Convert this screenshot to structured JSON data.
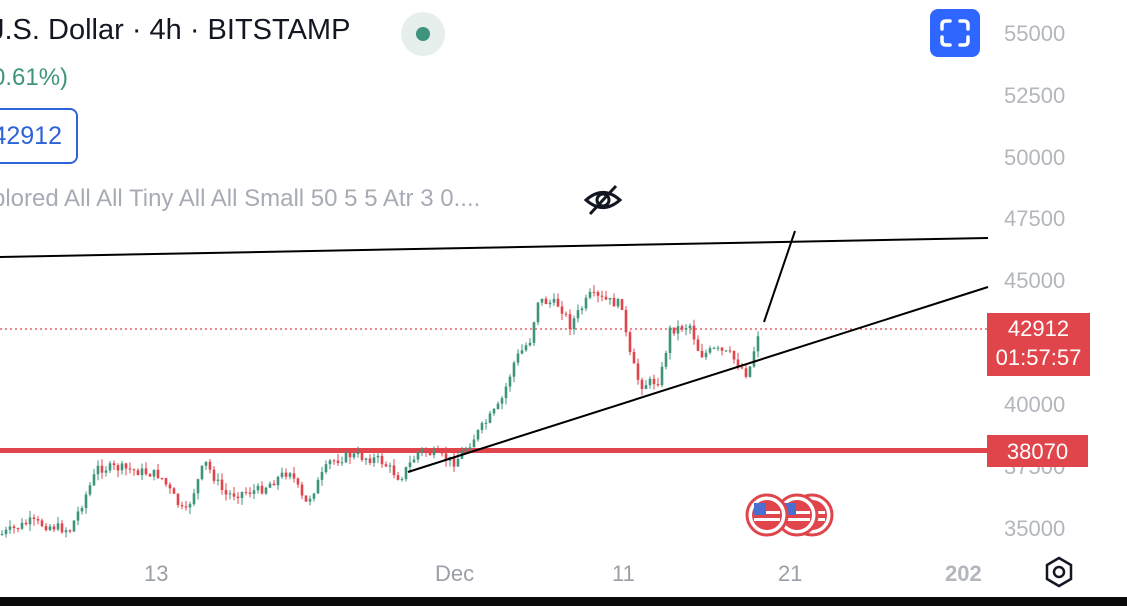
{
  "header": {
    "symbol_line": "J.S. Dollar · 4h · BITSTAMP",
    "change": "0.61%)",
    "price_box": "42912",
    "indicator_text": "blored All All Tiny All All Small 50 5 5 Atr 3 0....",
    "live_dot_color": "#3f947e"
  },
  "price_scale": {
    "ticks": [
      "55000",
      "52500",
      "50000",
      "47500",
      "45000",
      "40000",
      "37500",
      "35000"
    ],
    "current_price": "42912",
    "countdown": "01:57:57",
    "level_label": "38070",
    "label_color": "#e0454c"
  },
  "time_axis": {
    "ticks": [
      "13",
      "Dec",
      "11",
      "21",
      "202"
    ]
  },
  "icons": {
    "fullscreen": "fullscreen-icon",
    "hide": "eye-off-icon",
    "settings": "gear-icon",
    "events": "us-flag-event-icon"
  },
  "colors": {
    "up": "#3f947e",
    "down": "#e0454c",
    "accent": "#2e66ff"
  }
}
